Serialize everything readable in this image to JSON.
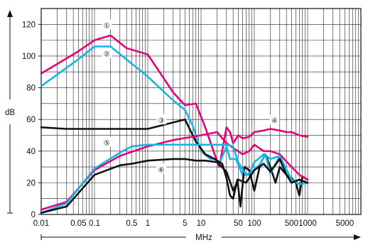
{
  "chart_data": {
    "type": "line",
    "xscale": "log",
    "xlim": [
      0.01,
      10000
    ],
    "ylim": [
      0,
      130
    ],
    "grid": true,
    "xlabel": "MHz",
    "ylabel": "dB",
    "x_tick_labels": [
      "0.01",
      "0.05",
      "0.1",
      "0.5",
      "1",
      "5",
      "10",
      "50",
      "100",
      "500",
      "1000",
      "5000"
    ],
    "x_tick_values": [
      0.01,
      0.05,
      0.1,
      0.5,
      1,
      5,
      10,
      50,
      100,
      500,
      1000,
      5000
    ],
    "y_tick_labels": [
      "0",
      "20",
      "40",
      "60",
      "80",
      "100",
      "120"
    ],
    "y_tick_values": [
      0,
      20,
      40,
      60,
      80,
      100,
      120
    ],
    "series": [
      {
        "marker": "①",
        "color": "#e6007e",
        "points": [
          [
            0.01,
            89
          ],
          [
            0.05,
            103
          ],
          [
            0.1,
            110
          ],
          [
            0.2,
            113
          ],
          [
            0.4,
            105
          ],
          [
            1,
            101
          ],
          [
            3,
            77
          ],
          [
            5,
            69
          ],
          [
            8,
            70
          ],
          [
            12,
            55
          ],
          [
            18,
            38
          ],
          [
            22,
            30
          ],
          [
            30,
            55
          ],
          [
            35,
            52
          ],
          [
            40,
            45
          ],
          [
            50,
            50
          ],
          [
            60,
            48
          ],
          [
            80,
            49
          ],
          [
            100,
            52
          ],
          [
            150,
            53
          ],
          [
            200,
            54
          ],
          [
            300,
            53
          ],
          [
            400,
            52
          ],
          [
            500,
            52
          ],
          [
            700,
            50
          ],
          [
            1000,
            49
          ]
        ]
      },
      {
        "marker": "②",
        "color": "#18b4e6",
        "points": [
          [
            0.01,
            81
          ],
          [
            0.05,
            98
          ],
          [
            0.1,
            106
          ],
          [
            0.2,
            106
          ],
          [
            1,
            87
          ],
          [
            3,
            72
          ],
          [
            5,
            66
          ],
          [
            7,
            56
          ],
          [
            10,
            40
          ],
          [
            15,
            35
          ],
          [
            18,
            35
          ],
          [
            22,
            32
          ],
          [
            30,
            43
          ],
          [
            35,
            35
          ],
          [
            45,
            35
          ],
          [
            60,
            25
          ],
          [
            80,
            25
          ],
          [
            100,
            33
          ],
          [
            150,
            38
          ],
          [
            200,
            35
          ],
          [
            300,
            37
          ],
          [
            400,
            28
          ],
          [
            500,
            22
          ],
          [
            700,
            19
          ],
          [
            1000,
            20
          ]
        ]
      },
      {
        "marker": "③",
        "color": "#111111",
        "points": [
          [
            0.01,
            55
          ],
          [
            0.03,
            54
          ],
          [
            0.1,
            54
          ],
          [
            0.3,
            54
          ],
          [
            1,
            54
          ],
          [
            5,
            60
          ],
          [
            8,
            46
          ],
          [
            12,
            38
          ],
          [
            18,
            35
          ],
          [
            25,
            32
          ],
          [
            30,
            23
          ],
          [
            35,
            12
          ],
          [
            40,
            10
          ],
          [
            48,
            22
          ],
          [
            55,
            5
          ],
          [
            65,
            30
          ],
          [
            80,
            28
          ],
          [
            100,
            15
          ],
          [
            130,
            32
          ],
          [
            160,
            38
          ],
          [
            200,
            30
          ],
          [
            250,
            20
          ],
          [
            300,
            30
          ],
          [
            400,
            25
          ],
          [
            500,
            23
          ],
          [
            600,
            20
          ],
          [
            700,
            12
          ],
          [
            800,
            24
          ],
          [
            1000,
            22
          ]
        ]
      },
      {
        "marker": "④",
        "color": "#e6007e",
        "points": [
          [
            0.01,
            3
          ],
          [
            0.03,
            8
          ],
          [
            0.1,
            28
          ],
          [
            0.3,
            37
          ],
          [
            1,
            43
          ],
          [
            3,
            47
          ],
          [
            10,
            50
          ],
          [
            20,
            52
          ],
          [
            30,
            45
          ],
          [
            40,
            42
          ],
          [
            60,
            38
          ],
          [
            80,
            40
          ],
          [
            100,
            44
          ],
          [
            150,
            40
          ],
          [
            200,
            40
          ],
          [
            300,
            38
          ],
          [
            500,
            30
          ],
          [
            700,
            25
          ],
          [
            1000,
            22
          ]
        ]
      },
      {
        "marker": "⑤",
        "color": "#18b4e6",
        "points": [
          [
            0.01,
            1
          ],
          [
            0.03,
            7
          ],
          [
            0.1,
            29
          ],
          [
            0.3,
            39
          ],
          [
            0.5,
            43
          ],
          [
            1,
            44
          ],
          [
            3,
            44
          ],
          [
            10,
            44
          ],
          [
            20,
            44
          ],
          [
            30,
            44
          ],
          [
            40,
            43
          ],
          [
            50,
            33
          ],
          [
            70,
            25
          ],
          [
            100,
            28
          ],
          [
            130,
            32
          ],
          [
            160,
            38
          ],
          [
            200,
            26
          ],
          [
            300,
            37
          ],
          [
            500,
            22
          ],
          [
            700,
            19
          ],
          [
            1000,
            20
          ]
        ]
      },
      {
        "marker": "⑥",
        "color": "#111111",
        "points": [
          [
            0.01,
            1
          ],
          [
            0.03,
            5
          ],
          [
            0.1,
            25
          ],
          [
            0.3,
            31
          ],
          [
            0.5,
            32
          ],
          [
            1,
            34
          ],
          [
            3,
            35
          ],
          [
            5,
            35
          ],
          [
            8,
            34
          ],
          [
            12,
            34
          ],
          [
            20,
            33
          ],
          [
            30,
            27
          ],
          [
            40,
            15
          ],
          [
            50,
            22
          ],
          [
            70,
            20
          ],
          [
            100,
            28
          ],
          [
            150,
            32
          ],
          [
            200,
            27
          ],
          [
            300,
            35
          ],
          [
            400,
            25
          ],
          [
            500,
            20
          ],
          [
            700,
            22
          ],
          [
            1000,
            20
          ]
        ]
      }
    ],
    "labels": [
      {
        "text": "①",
        "x": 0.17,
        "y": 120
      },
      {
        "text": "②",
        "x": 0.17,
        "y": 102
      },
      {
        "text": "③",
        "x": 1.8,
        "y": 60
      },
      {
        "text": "④",
        "x": 240,
        "y": 60
      },
      {
        "text": "⑤",
        "x": 0.17,
        "y": 46
      },
      {
        "text": "⑥",
        "x": 1.8,
        "y": 29
      }
    ]
  }
}
